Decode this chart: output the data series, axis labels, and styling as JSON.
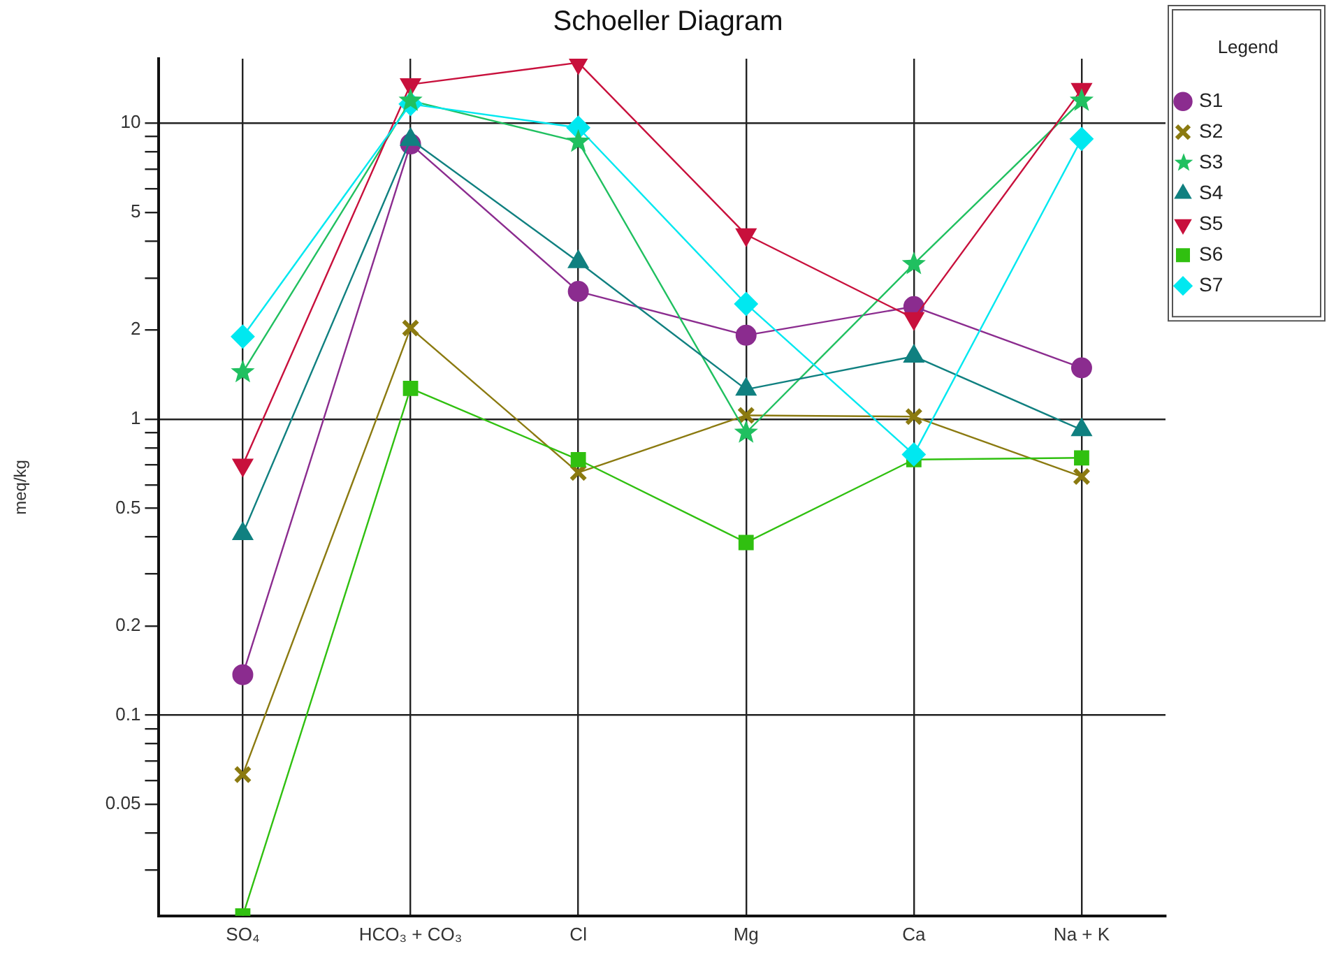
{
  "chart_data": {
    "type": "line",
    "title": "Schoeller Diagram",
    "ylabel": "meq/kg",
    "legend_title": "Legend",
    "legend": "right",
    "log": "y",
    "grid": true,
    "categories": [
      "SO₄",
      "HCO₃ + CO₃",
      "Cl",
      "Mg",
      "Ca",
      "Na + K"
    ],
    "ylim": [
      0.021,
      16.5
    ],
    "yticks": [
      {
        "value": 0.03,
        "label": null
      },
      {
        "value": 0.04,
        "label": null
      },
      0.05,
      {
        "value": 0.06,
        "label": null
      },
      {
        "value": 0.07,
        "label": null
      },
      {
        "value": 0.08,
        "label": null
      },
      {
        "value": 0.09,
        "label": null
      },
      0.1,
      0.2,
      {
        "value": 0.3,
        "label": null
      },
      {
        "value": 0.4,
        "label": null
      },
      0.5,
      {
        "value": 0.6,
        "label": null
      },
      {
        "value": 0.7,
        "label": null
      },
      {
        "value": 0.8,
        "label": null
      },
      {
        "value": 0.9,
        "label": null
      },
      1,
      2,
      {
        "value": 3,
        "label": null
      },
      {
        "value": 4,
        "label": null
      },
      5,
      {
        "value": 6,
        "label": null
      },
      {
        "value": 7,
        "label": null
      },
      {
        "value": 8,
        "label": null
      },
      {
        "value": 9,
        "label": null
      },
      10
    ],
    "series": [
      {
        "name": "S1",
        "color": "#8b2c8f",
        "marker": "circle",
        "values": [
          0.137,
          8.5,
          2.7,
          1.92,
          2.4,
          1.49
        ]
      },
      {
        "name": "S2",
        "color": "#8b7a10",
        "marker": "cross",
        "values": [
          0.063,
          2.03,
          0.66,
          1.03,
          1.02,
          0.64
        ]
      },
      {
        "name": "S3",
        "color": "#20c060",
        "marker": "star",
        "values": [
          1.44,
          11.9,
          8.65,
          0.9,
          3.34,
          11.9
        ]
      },
      {
        "name": "S4",
        "color": "#108080",
        "marker": "triangle",
        "values": [
          0.41,
          8.8,
          3.4,
          1.26,
          1.63,
          0.92
        ]
      },
      {
        "name": "S5",
        "color": "#c8103c",
        "marker": "triangle-down",
        "values": [
          0.7,
          13.5,
          16,
          4.2,
          2.19,
          13
        ]
      },
      {
        "name": "S6",
        "color": "#30c010",
        "marker": "square",
        "values": [
          0.021,
          1.27,
          0.73,
          0.383,
          0.73,
          0.74
        ]
      },
      {
        "name": "S7",
        "color": "#00e8f0",
        "marker": "diamond",
        "values": [
          1.9,
          11.6,
          9.65,
          2.45,
          0.76,
          8.84
        ]
      }
    ]
  }
}
